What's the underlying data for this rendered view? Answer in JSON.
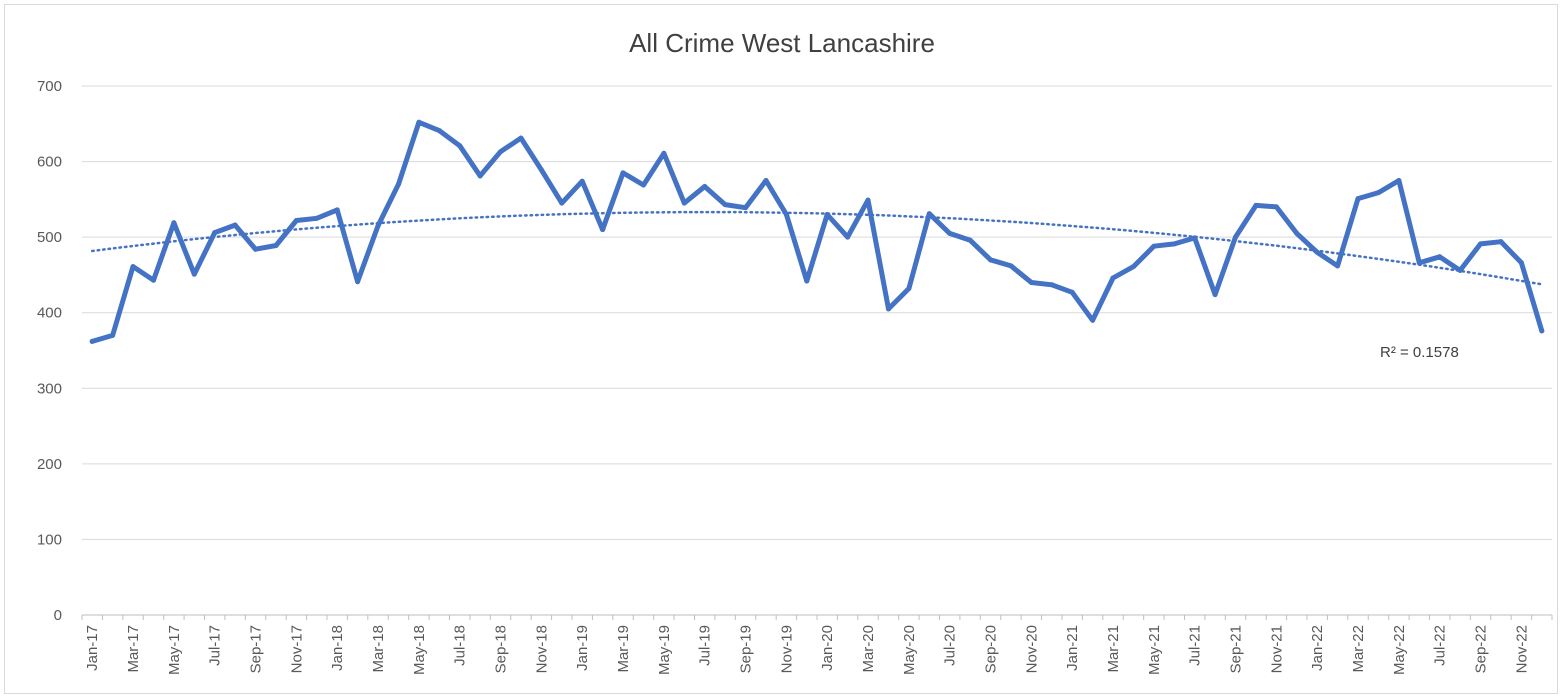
{
  "chart_data": {
    "type": "line",
    "title": "All Crime West Lancashire",
    "xlabel": "",
    "ylabel": "",
    "ylim": [
      0,
      700
    ],
    "yticks": [
      0,
      100,
      200,
      300,
      400,
      500,
      600,
      700
    ],
    "grid": true,
    "legend": "none",
    "trendline": {
      "type": "polynomial",
      "label": "R² = 0.1578",
      "style": "dotted"
    },
    "x": [
      "Jan-17",
      "Feb-17",
      "Mar-17",
      "Apr-17",
      "May-17",
      "Jun-17",
      "Jul-17",
      "Aug-17",
      "Sep-17",
      "Oct-17",
      "Nov-17",
      "Dec-17",
      "Jan-18",
      "Feb-18",
      "Mar-18",
      "Apr-18",
      "May-18",
      "Jun-18",
      "Jul-18",
      "Aug-18",
      "Sep-18",
      "Oct-18",
      "Nov-18",
      "Dec-18",
      "Jan-19",
      "Feb-19",
      "Mar-19",
      "Apr-19",
      "May-19",
      "Jun-19",
      "Jul-19",
      "Aug-19",
      "Sep-19",
      "Oct-19",
      "Nov-19",
      "Dec-19",
      "Jan-20",
      "Feb-20",
      "Mar-20",
      "Apr-20",
      "May-20",
      "Jun-20",
      "Jul-20",
      "Aug-20",
      "Sep-20",
      "Oct-20",
      "Nov-20",
      "Dec-20",
      "Jan-21",
      "Feb-21",
      "Mar-21",
      "Apr-21",
      "May-21",
      "Jun-21",
      "Jul-21",
      "Aug-21",
      "Sep-21",
      "Oct-21",
      "Nov-21",
      "Dec-21",
      "Jan-22",
      "Feb-22",
      "Mar-22",
      "Apr-22",
      "May-22",
      "Jun-22",
      "Jul-22",
      "Aug-22",
      "Sep-22",
      "Oct-22",
      "Nov-22",
      "Dec-22"
    ],
    "xtick_labels": [
      "Jan-17",
      "Mar-17",
      "May-17",
      "Jul-17",
      "Sep-17",
      "Nov-17",
      "Jan-18",
      "Mar-18",
      "May-18",
      "Jul-18",
      "Sep-18",
      "Nov-18",
      "Jan-19",
      "Mar-19",
      "May-19",
      "Jul-19",
      "Sep-19",
      "Nov-19",
      "Jan-20",
      "Mar-20",
      "May-20",
      "Jul-20",
      "Sep-20",
      "Nov-20",
      "Jan-21",
      "Mar-21",
      "May-21",
      "Jul-21",
      "Sep-21",
      "Nov-21",
      "Jan-22",
      "Mar-22",
      "May-22",
      "Jul-22",
      "Sep-22",
      "Nov-22"
    ],
    "series": [
      {
        "color": "#4472c4",
        "values": [
          362,
          370,
          461,
          443,
          519,
          451,
          506,
          516,
          484,
          489,
          522,
          525,
          536,
          441,
          515,
          570,
          652,
          641,
          621,
          581,
          613,
          631,
          589,
          545,
          574,
          510,
          585,
          569,
          611,
          545,
          567,
          543,
          539,
          575,
          530,
          442,
          530,
          500,
          549,
          405,
          432,
          531,
          505,
          496,
          470,
          462,
          440,
          437,
          427,
          390,
          446,
          461,
          488,
          491,
          499,
          424,
          500,
          542,
          540,
          505,
          480,
          462,
          551,
          559,
          575,
          466,
          474,
          456,
          491,
          494,
          466,
          376
        ]
      }
    ],
    "trend_color": "#4472c4"
  }
}
